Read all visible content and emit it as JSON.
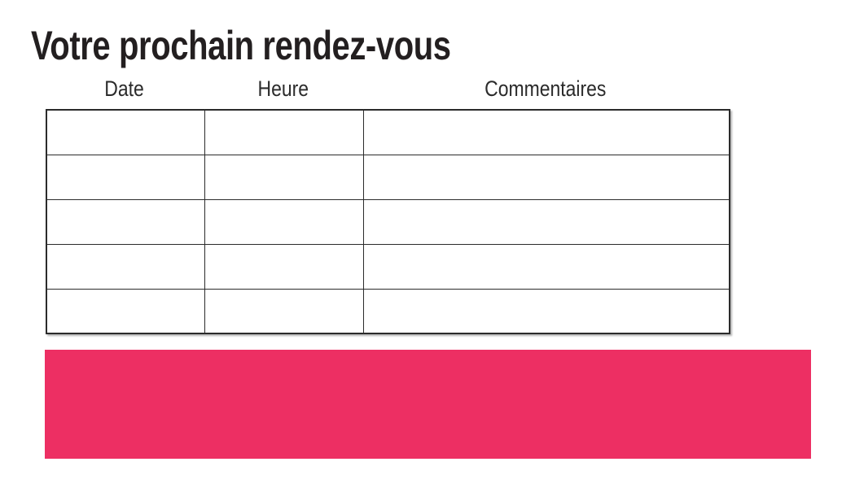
{
  "page": {
    "background": "#FFFFFF",
    "title": "Votre prochain rendez-vous"
  },
  "table": {
    "headers": [
      "Date",
      "Heure",
      "Commentaires"
    ],
    "rows": [
      [
        "",
        "",
        ""
      ],
      [
        "",
        "",
        ""
      ],
      [
        "",
        "",
        ""
      ],
      [
        "",
        "",
        ""
      ],
      [
        "",
        "",
        ""
      ]
    ]
  },
  "banner": {
    "text": ""
  },
  "colors": {
    "accent_pink": "#ED2F63",
    "title_text": "#231F20",
    "header_text": "#2B2B2B",
    "table_border": "#2B2B2B"
  }
}
